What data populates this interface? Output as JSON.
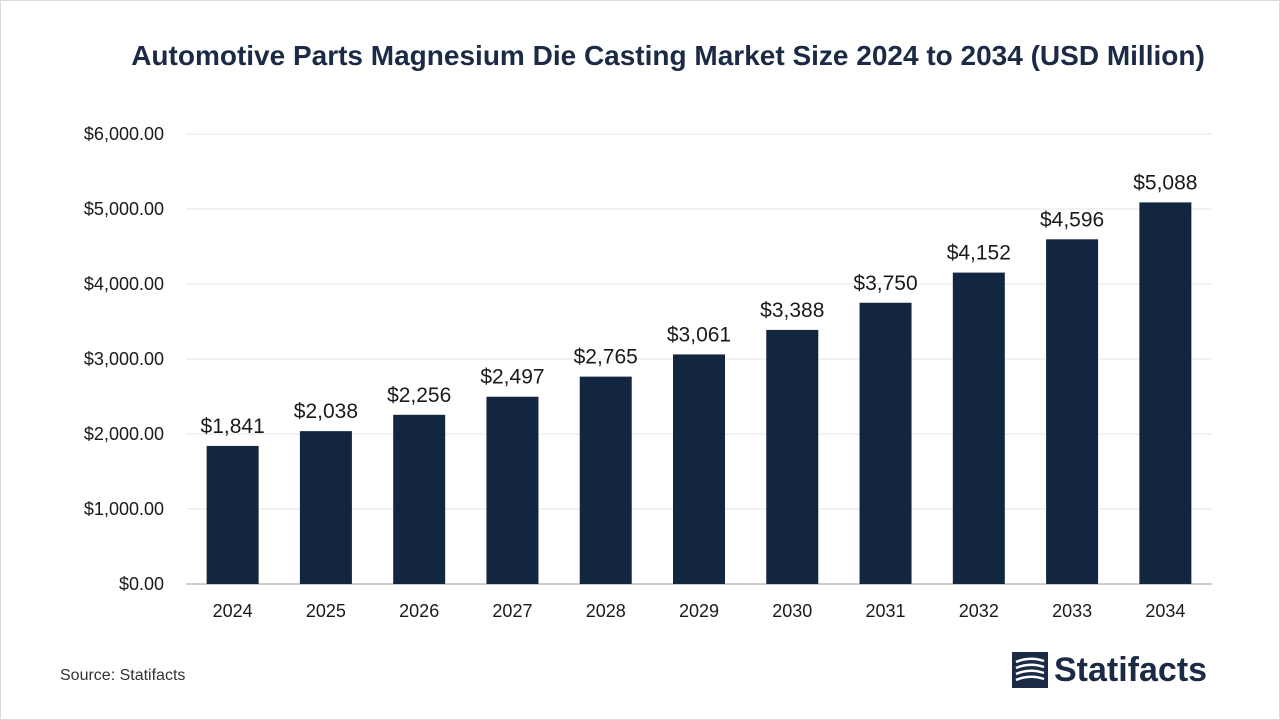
{
  "chart_data": {
    "type": "bar",
    "title": "Automotive Parts Magnesium Die Casting Market Size 2024 to 2034 (USD Million)",
    "categories": [
      "2024",
      "2025",
      "2026",
      "2027",
      "2028",
      "2029",
      "2030",
      "2031",
      "2032",
      "2033",
      "2034"
    ],
    "values": [
      1841,
      2038,
      2256,
      2497,
      2765,
      3061,
      3388,
      3750,
      4152,
      4596,
      5088
    ],
    "value_labels": [
      "$1,841",
      "$2,038",
      "$2,256",
      "$2,497",
      "$2,765",
      "$3,061",
      "$3,388",
      "$3,750",
      "$4,152",
      "$4,596",
      "$5,088"
    ],
    "yticks": [
      0,
      1000,
      2000,
      3000,
      4000,
      5000,
      6000
    ],
    "ytick_labels": [
      "$0.00",
      "$1,000.00",
      "$2,000.00",
      "$3,000.00",
      "$4,000.00",
      "$5,000.00",
      "$6,000.00"
    ],
    "ylim": [
      0,
      6000
    ],
    "xlabel": "",
    "ylabel": "",
    "grid": true,
    "legend": "none",
    "bar_color": "#13263f"
  },
  "footer": {
    "source": "Source: Statifacts",
    "brand": "Statifacts"
  },
  "colors": {
    "title": "#1b2a45",
    "bar": "#13263f",
    "grid": "#e6e6e6",
    "axis": "#bfbfbf",
    "text": "#1a1a1a"
  }
}
